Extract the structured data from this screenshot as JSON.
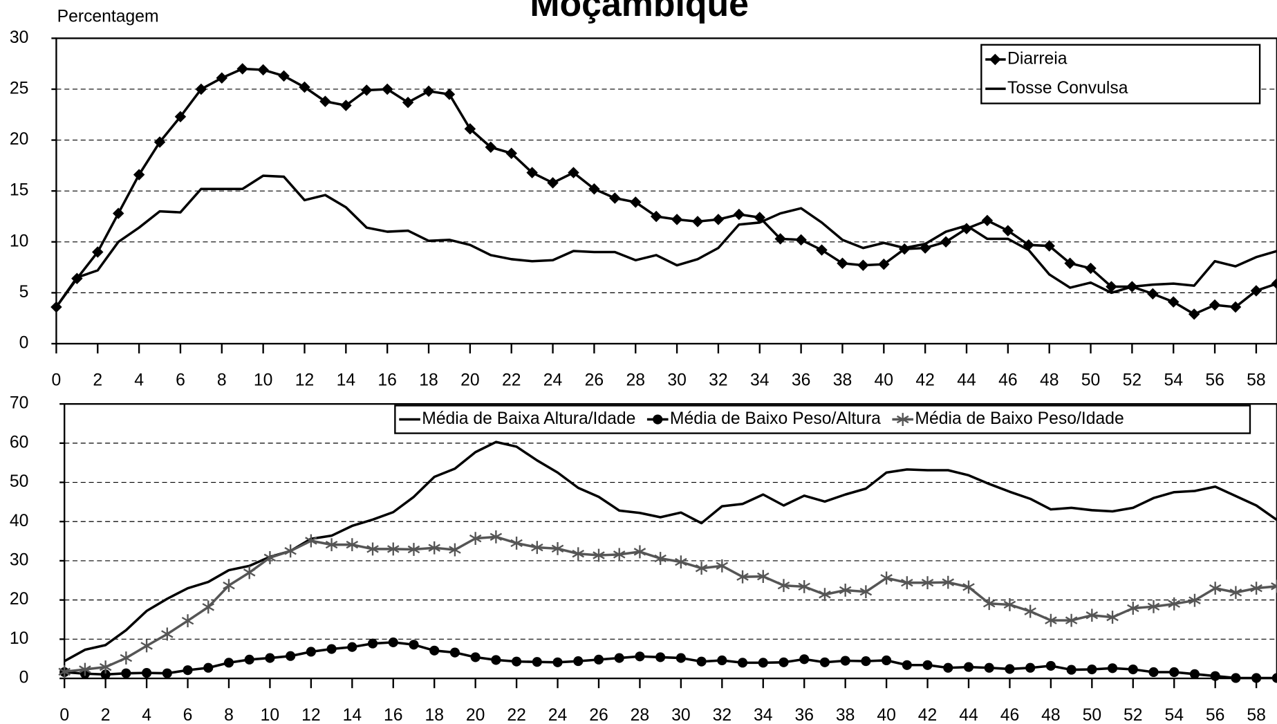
{
  "chart_data": [
    {
      "type": "line",
      "title": "Moçambique",
      "y_label": "Percentagem",
      "x": [
        0,
        1,
        2,
        3,
        4,
        5,
        6,
        7,
        8,
        9,
        10,
        11,
        12,
        13,
        14,
        15,
        16,
        17,
        18,
        19,
        20,
        21,
        22,
        23,
        24,
        25,
        26,
        27,
        28,
        29,
        30,
        31,
        32,
        33,
        34,
        35,
        36,
        37,
        38,
        39,
        40,
        41,
        42,
        43,
        44,
        45,
        46,
        47,
        48,
        49,
        50,
        51,
        52,
        53,
        54,
        55,
        56,
        57,
        58,
        59
      ],
      "xlim": [
        0,
        59
      ],
      "xticks": [
        0,
        2,
        4,
        6,
        8,
        10,
        12,
        14,
        16,
        18,
        20,
        22,
        24,
        26,
        28,
        30,
        32,
        34,
        36,
        38,
        40,
        42,
        44,
        46,
        48,
        50,
        52,
        54,
        56,
        58
      ],
      "ylim": [
        0,
        30
      ],
      "yticks": [
        0,
        5,
        10,
        15,
        20,
        25,
        30
      ],
      "grid": true,
      "legend": "upper right",
      "series": [
        {
          "name": "Diarreia",
          "color": "#000000",
          "marker": "diamond",
          "values": [
            3.6,
            6.4,
            9.0,
            12.8,
            16.6,
            19.8,
            22.3,
            25.0,
            26.1,
            27.0,
            26.9,
            26.3,
            25.2,
            23.8,
            23.4,
            24.9,
            25.0,
            23.7,
            24.8,
            24.5,
            21.1,
            19.3,
            18.7,
            16.8,
            15.8,
            16.8,
            15.2,
            14.3,
            13.9,
            12.5,
            12.2,
            12.0,
            12.2,
            12.7,
            12.4,
            10.3,
            10.2,
            9.2,
            7.9,
            7.7,
            7.8,
            9.3,
            9.4,
            10.0,
            11.3,
            12.1,
            11.1,
            9.7,
            9.6,
            7.9,
            7.4,
            5.6,
            5.6,
            4.9,
            4.1,
            2.9,
            3.8,
            3.6,
            5.2,
            5.9
          ]
        },
        {
          "name": "Tosse Convulsa",
          "color": "#000000",
          "marker": null,
          "values": [
            3.6,
            6.5,
            7.2,
            10.0,
            11.4,
            13.0,
            12.9,
            15.2,
            15.2,
            15.2,
            16.5,
            16.4,
            14.1,
            14.6,
            13.4,
            11.4,
            11.0,
            11.1,
            10.1,
            10.2,
            9.7,
            8.7,
            8.3,
            8.1,
            8.2,
            9.1,
            9.0,
            9.0,
            8.2,
            8.7,
            7.7,
            8.3,
            9.4,
            11.7,
            11.9,
            12.8,
            13.3,
            11.9,
            10.2,
            9.4,
            9.9,
            9.4,
            9.8,
            11.0,
            11.6,
            10.3,
            10.3,
            9.2,
            6.8,
            5.5,
            6.0,
            5.0,
            5.6,
            5.8,
            5.9,
            5.7,
            8.1,
            7.6,
            8.5,
            9.1
          ]
        }
      ]
    },
    {
      "type": "line",
      "x": [
        0,
        1,
        2,
        3,
        4,
        5,
        6,
        7,
        8,
        9,
        10,
        11,
        12,
        13,
        14,
        15,
        16,
        17,
        18,
        19,
        20,
        21,
        22,
        23,
        24,
        25,
        26,
        27,
        28,
        29,
        30,
        31,
        32,
        33,
        34,
        35,
        36,
        37,
        38,
        39,
        40,
        41,
        42,
        43,
        44,
        45,
        46,
        47,
        48,
        49,
        50,
        51,
        52,
        53,
        54,
        55,
        56,
        57,
        58,
        59
      ],
      "xlim": [
        0,
        59
      ],
      "xticks": [
        0,
        2,
        4,
        6,
        8,
        10,
        12,
        14,
        16,
        18,
        20,
        22,
        24,
        26,
        28,
        30,
        32,
        34,
        36,
        38,
        40,
        42,
        44,
        46,
        48,
        50,
        52,
        54,
        56,
        58
      ],
      "ylim": [
        0,
        70
      ],
      "yticks": [
        0,
        10,
        20,
        30,
        40,
        50,
        60,
        70
      ],
      "grid": true,
      "legend": "top",
      "series": [
        {
          "name": "Média de Baixa Altura/Idade",
          "color": "#000000",
          "marker": null,
          "values": [
            4.4,
            7.3,
            8.5,
            12.3,
            17.2,
            20.3,
            23.0,
            24.6,
            27.6,
            28.7,
            31.0,
            32.5,
            35.6,
            36.4,
            38.9,
            40.5,
            42.4,
            46.3,
            51.4,
            53.5,
            57.7,
            60.3,
            59.1,
            55.6,
            52.5,
            48.6,
            46.3,
            42.8,
            42.2,
            41.1,
            42.3,
            39.6,
            43.9,
            44.5,
            46.9,
            44.1,
            46.6,
            45.1,
            46.9,
            48.4,
            52.5,
            53.3,
            53.1,
            53.1,
            51.8,
            49.6,
            47.6,
            45.8,
            43.1,
            43.5,
            42.9,
            42.6,
            43.5,
            46.0,
            47.5,
            47.8,
            48.9,
            46.5,
            44.1,
            40.4
          ]
        },
        {
          "name": "Média de Baixo Peso/Altura",
          "color": "#000000",
          "marker": "circle",
          "values": [
            1.6,
            1.2,
            1.0,
            1.3,
            1.4,
            1.3,
            2.1,
            2.7,
            4.0,
            4.8,
            5.2,
            5.7,
            6.8,
            7.5,
            8.0,
            8.9,
            9.2,
            8.6,
            7.1,
            6.6,
            5.4,
            4.7,
            4.3,
            4.2,
            4.1,
            4.4,
            4.8,
            5.2,
            5.6,
            5.4,
            5.2,
            4.3,
            4.6,
            4.0,
            4.0,
            4.1,
            4.9,
            4.1,
            4.5,
            4.4,
            4.6,
            3.4,
            3.4,
            2.7,
            2.9,
            2.7,
            2.4,
            2.7,
            3.2,
            2.2,
            2.3,
            2.6,
            2.3,
            1.6,
            1.6,
            1.1,
            0.6,
            0.1,
            0.1,
            0.1
          ]
        },
        {
          "name": "Média de Baixo Peso/Idade",
          "color": "#555555",
          "marker": "star",
          "values": [
            1.7,
            2.3,
            2.9,
            5.2,
            8.3,
            11.3,
            14.7,
            18.2,
            23.7,
            27.0,
            30.8,
            32.5,
            35.1,
            34.1,
            34.1,
            33.0,
            33.0,
            32.9,
            33.3,
            32.8,
            35.7,
            36.1,
            34.5,
            33.4,
            33.1,
            31.8,
            31.4,
            31.6,
            32.3,
            30.6,
            29.7,
            28.1,
            28.7,
            25.9,
            26.0,
            23.7,
            23.4,
            21.4,
            22.5,
            22.1,
            25.6,
            24.4,
            24.4,
            24.5,
            23.3,
            19.1,
            18.8,
            17.1,
            14.8,
            14.8,
            16.1,
            15.6,
            17.9,
            18.3,
            19.0,
            19.9,
            23.0,
            21.9,
            23.0,
            23.5
          ]
        }
      ]
    }
  ]
}
